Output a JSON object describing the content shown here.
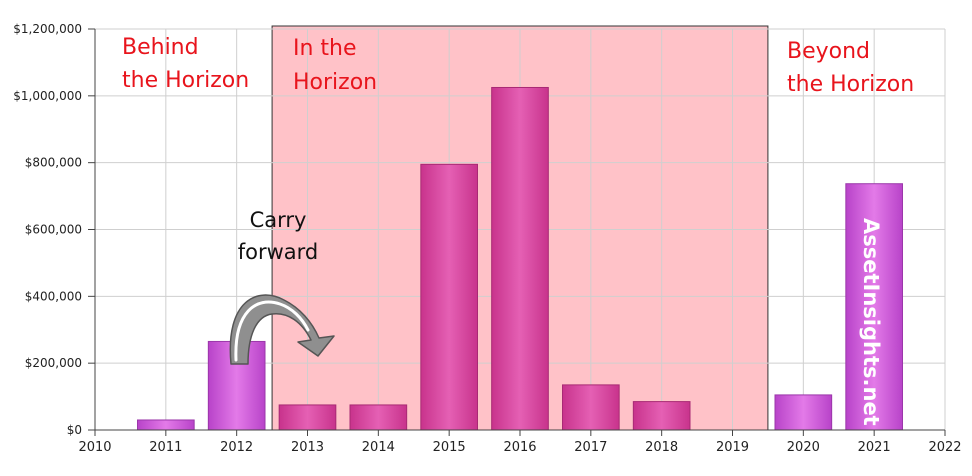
{
  "chart_data": {
    "type": "bar",
    "x": [
      2011,
      2012,
      2013,
      2014,
      2015,
      2016,
      2017,
      2018,
      2019,
      2020,
      2021
    ],
    "values": [
      30000,
      265000,
      75000,
      75000,
      795000,
      1025000,
      135000,
      85000,
      0,
      105000,
      737000
    ],
    "xlim": [
      2010,
      2022
    ],
    "ylim": [
      0,
      1200000
    ],
    "x_ticks": [
      "2010",
      "2011",
      "2012",
      "2013",
      "2014",
      "2015",
      "2016",
      "2017",
      "2018",
      "2019",
      "2020",
      "2021",
      "2022"
    ],
    "y_ticks": [
      "$0",
      "$200,000",
      "$400,000",
      "$600,000",
      "$800,000",
      "$1,000,000",
      "$1,200,000"
    ],
    "grid": true,
    "title": "",
    "xlabel": "",
    "ylabel": "",
    "horizon_range": [
      2012.5,
      2019.5
    ],
    "colors": {
      "bar_outside": "#c94fd6",
      "bar_inside": "#d8409e",
      "horizon_fill": "#ffc2c8",
      "zone_label": "#e8141c"
    }
  },
  "annotations": {
    "behind": [
      "Behind",
      "the Horizon"
    ],
    "in": [
      "In the",
      "Horizon"
    ],
    "beyond": [
      "Beyond",
      "the Horizon"
    ],
    "carry": [
      "Carry",
      "forward"
    ],
    "watermark": "AssetInsights.net"
  }
}
